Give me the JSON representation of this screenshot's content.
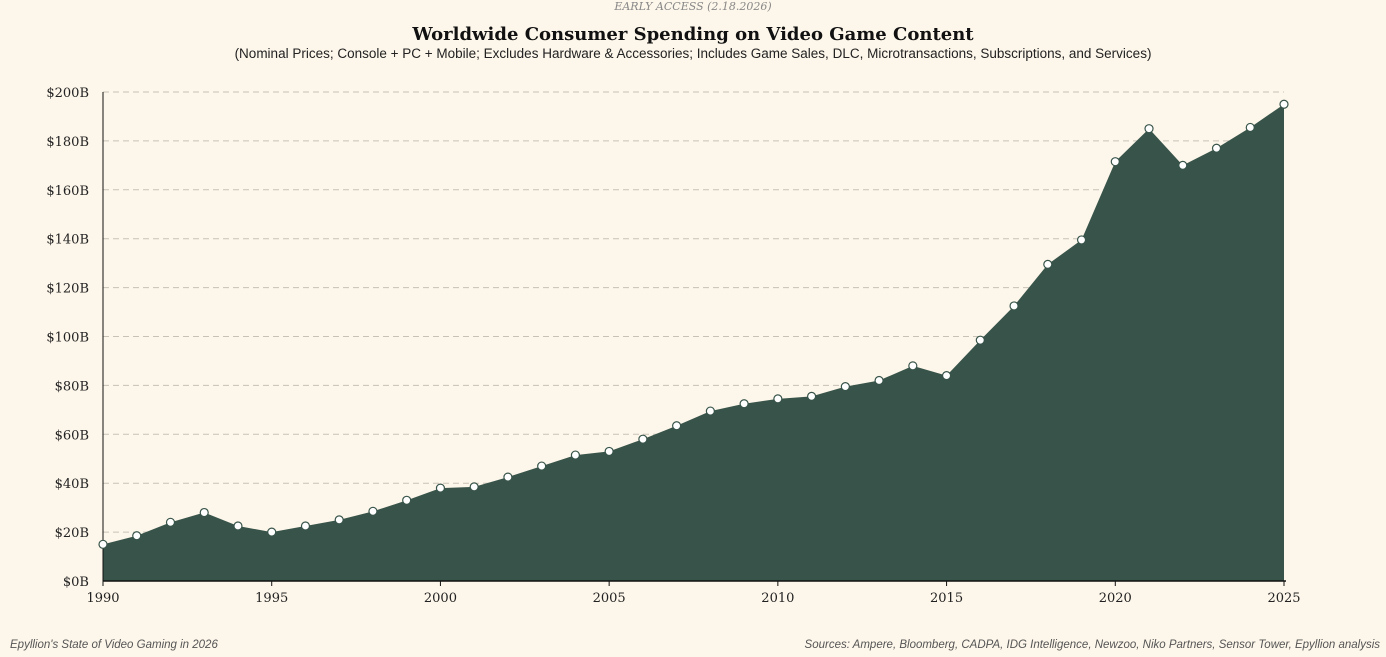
{
  "banner": "EARLY ACCESS (2.18.2026)",
  "footer_left": "Epyllion's State of Video Gaming in 2026",
  "footer_right": "Sources: Ampere, Bloomberg, CADPA, IDG Intelligence, Newzoo, Niko Partners, Sensor Tower, Epyllion analysis",
  "chart_data": {
    "type": "area",
    "title": "Worldwide Consumer Spending on Video Game Content",
    "subtitle": "(Nominal Prices; Console + PC + Mobile; Excludes Hardware & Accessories; Includes Game Sales, DLC, Microtransactions, Subscriptions, and Services)",
    "xlabel": "",
    "ylabel": "",
    "xlim": [
      1990,
      2025
    ],
    "ylim": [
      0,
      200
    ],
    "x_ticks": [
      1990,
      1995,
      2000,
      2005,
      2010,
      2015,
      2020,
      2025
    ],
    "y_ticks": [
      "$0B",
      "$20B",
      "$40B",
      "$60B",
      "$80B",
      "$100B",
      "$120B",
      "$140B",
      "$160B",
      "$180B",
      "$200B"
    ],
    "grid": "horizontal dashed",
    "fill_color": "#38544a",
    "x": [
      1990,
      1991,
      1992,
      1993,
      1994,
      1995,
      1996,
      1997,
      1998,
      1999,
      2000,
      2001,
      2002,
      2003,
      2004,
      2005,
      2006,
      2007,
      2008,
      2009,
      2010,
      2011,
      2012,
      2013,
      2014,
      2015,
      2016,
      2017,
      2018,
      2019,
      2020,
      2021,
      2022,
      2023,
      2024,
      2025
    ],
    "values": [
      15,
      18.5,
      24,
      28,
      22.5,
      20,
      22.5,
      25,
      28.5,
      33,
      38,
      38.5,
      42.5,
      47,
      51.5,
      53,
      58,
      63.5,
      69.5,
      72.5,
      74.5,
      75.5,
      79.5,
      82,
      88,
      84,
      98.5,
      112.5,
      129.5,
      139.5,
      171.5,
      185,
      170,
      177,
      185.5,
      195
    ]
  }
}
